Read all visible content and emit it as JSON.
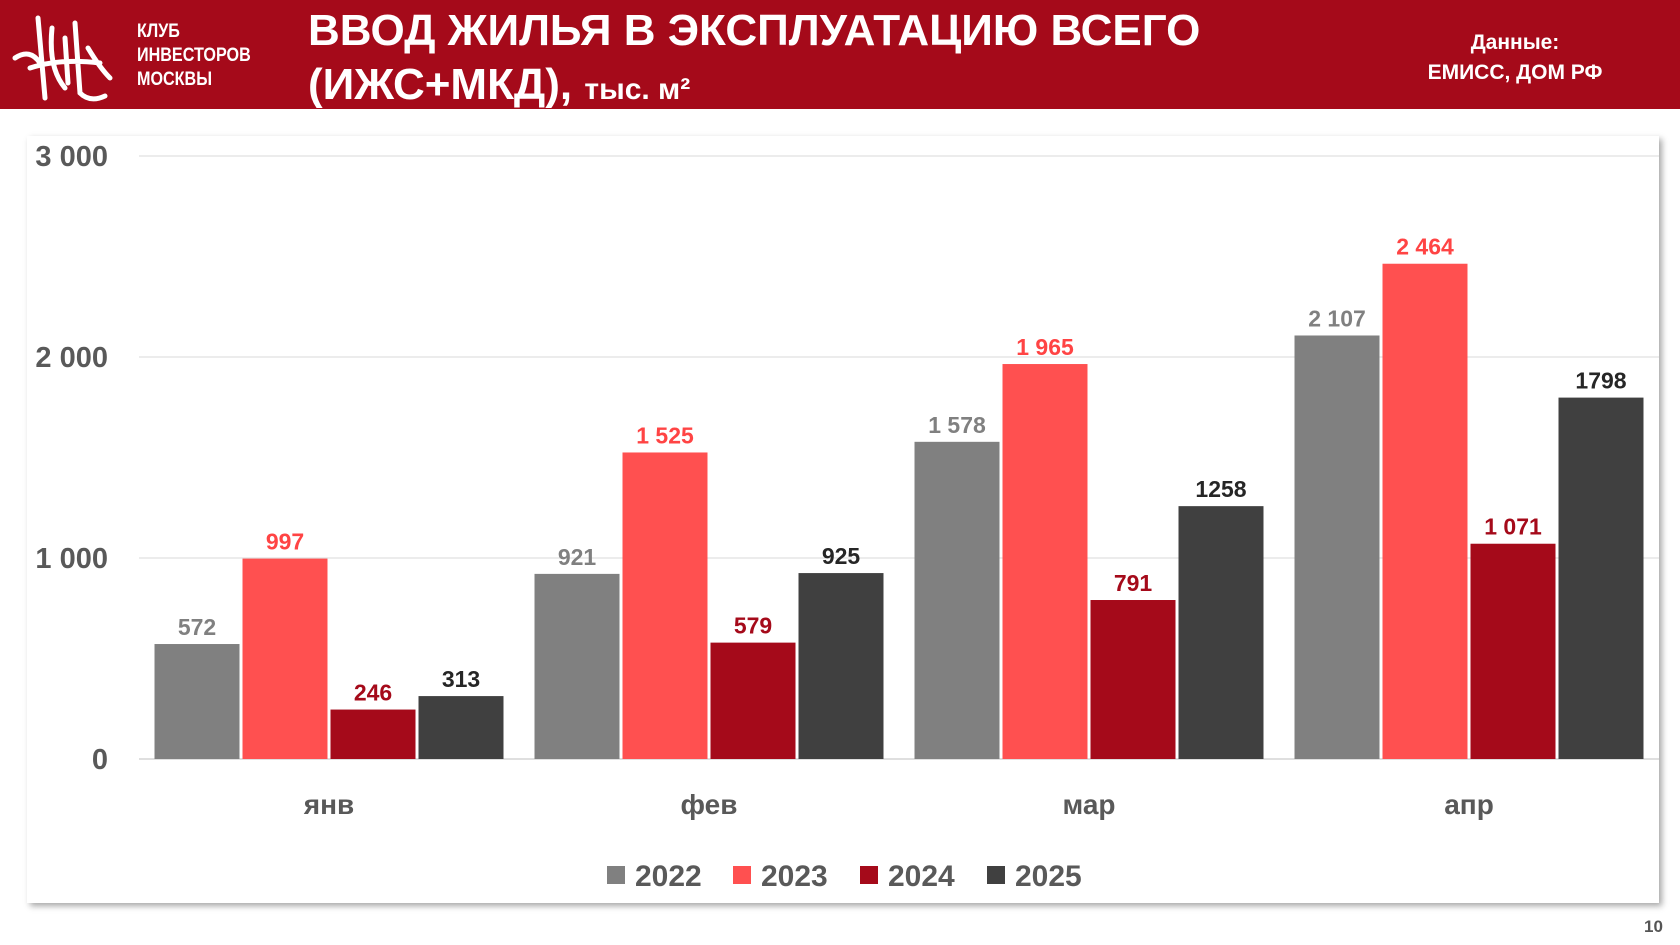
{
  "header": {
    "club_lines": [
      "КЛУБ",
      "ИНВЕСТОРОВ",
      "МОСКВЫ"
    ],
    "title_line1": "ВВОД ЖИЛЬЯ В ЭКСПЛУАТАЦИЮ ВСЕГО",
    "title_line2": "(ИЖС+МКД),",
    "title_unit": "тыс. м²",
    "source_label": "Данные:",
    "source_value": "ЕМИСС, ДОМ РФ"
  },
  "page_number": "10",
  "chart_data": {
    "type": "bar",
    "title": "ВВОД ЖИЛЬЯ В ЭКСПЛУАТАЦИЮ ВСЕГО (ИЖС+МКД), тыс. м²",
    "categories": [
      "янв",
      "фев",
      "мар",
      "апр"
    ],
    "ylim": [
      0,
      3000
    ],
    "yticks": [
      0,
      1000,
      2000,
      3000
    ],
    "ytick_labels": [
      "0",
      "1 000",
      "2 000",
      "3 000"
    ],
    "grid": true,
    "legend_position": "bottom",
    "series": [
      {
        "name": "2022",
        "color": "#808080",
        "label_color": "#808080",
        "values": [
          572,
          921,
          1578,
          2107
        ],
        "labels": [
          "572",
          "921",
          "1 578",
          "2 107"
        ]
      },
      {
        "name": "2023",
        "color": "#ff5050",
        "label_color": "#ff4444",
        "values": [
          997,
          1525,
          1965,
          2464
        ],
        "labels": [
          "997",
          "1 525",
          "1 965",
          "2 464"
        ]
      },
      {
        "name": "2024",
        "color": "#a50a1a",
        "label_color": "#a50a1a",
        "values": [
          246,
          579,
          791,
          1071
        ],
        "labels": [
          "246",
          "579",
          "791",
          "1 071"
        ]
      },
      {
        "name": "2025",
        "color": "#404040",
        "label_color": "#262626",
        "values": [
          313,
          925,
          1258,
          1798
        ],
        "labels": [
          "313",
          "925",
          "1258",
          "1798"
        ]
      }
    ]
  }
}
